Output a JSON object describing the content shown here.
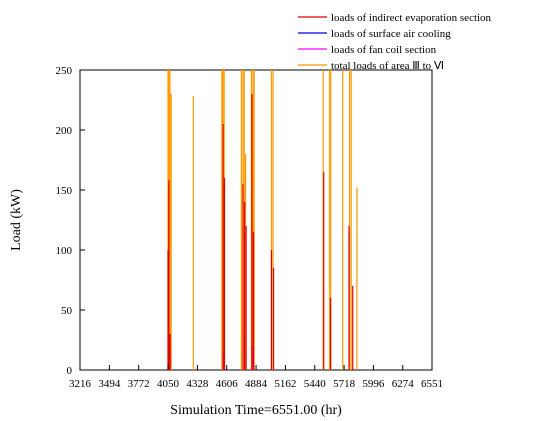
{
  "chart_data": {
    "type": "line",
    "title": "",
    "xlabel": "Simulation Time=6551.00 (hr)",
    "ylabel": "Load (kW)",
    "xlim": [
      3216,
      6551
    ],
    "ylim": [
      0,
      250
    ],
    "x_ticks": [
      3216,
      3494,
      3772,
      4050,
      4328,
      4606,
      4884,
      5162,
      5440,
      5718,
      5996,
      6274,
      6551
    ],
    "y_ticks": [
      0,
      50,
      100,
      150,
      200,
      250
    ],
    "grid": false,
    "legend_position": "top-right",
    "series": [
      {
        "name": "loads of indirect evaporation section",
        "color": "#e00000",
        "spikes": [
          {
            "x": 4050,
            "y": 100
          },
          {
            "x": 4058,
            "y": 158
          },
          {
            "x": 4070,
            "y": 30
          },
          {
            "x": 4572,
            "y": 205
          },
          {
            "x": 4585,
            "y": 160
          },
          {
            "x": 4760,
            "y": 155
          },
          {
            "x": 4775,
            "y": 140
          },
          {
            "x": 4790,
            "y": 120
          },
          {
            "x": 4845,
            "y": 230
          },
          {
            "x": 4860,
            "y": 115
          },
          {
            "x": 5030,
            "y": 100
          },
          {
            "x": 5050,
            "y": 85
          },
          {
            "x": 5525,
            "y": 165
          },
          {
            "x": 5590,
            "y": 60
          },
          {
            "x": 5765,
            "y": 120
          },
          {
            "x": 5800,
            "y": 70
          }
        ]
      },
      {
        "name": "loads of surface air cooling",
        "color": "#0000e0",
        "spikes": []
      },
      {
        "name": "loads of fan coil section",
        "color": "#ff00ff",
        "spikes": [
          {
            "x": 4065,
            "y": 20
          },
          {
            "x": 4580,
            "y": 15
          },
          {
            "x": 4855,
            "y": 20
          }
        ]
      },
      {
        "name": "total loads of area Ⅲ to Ⅵ",
        "color": "#ff9900",
        "spikes": [
          {
            "x": 4050,
            "y": 250
          },
          {
            "x": 4058,
            "y": 250
          },
          {
            "x": 4068,
            "y": 250
          },
          {
            "x": 4080,
            "y": 230
          },
          {
            "x": 4290,
            "y": 228
          },
          {
            "x": 4560,
            "y": 250
          },
          {
            "x": 4570,
            "y": 250
          },
          {
            "x": 4582,
            "y": 250
          },
          {
            "x": 4745,
            "y": 250
          },
          {
            "x": 4760,
            "y": 250
          },
          {
            "x": 4772,
            "y": 250
          },
          {
            "x": 4785,
            "y": 180
          },
          {
            "x": 4840,
            "y": 250
          },
          {
            "x": 4855,
            "y": 250
          },
          {
            "x": 4866,
            "y": 250
          },
          {
            "x": 5030,
            "y": 250
          },
          {
            "x": 5045,
            "y": 250
          },
          {
            "x": 5520,
            "y": 250
          },
          {
            "x": 5580,
            "y": 250
          },
          {
            "x": 5592,
            "y": 250
          },
          {
            "x": 5705,
            "y": 250
          },
          {
            "x": 5770,
            "y": 250
          },
          {
            "x": 5785,
            "y": 250
          },
          {
            "x": 5840,
            "y": 152
          }
        ]
      }
    ]
  }
}
